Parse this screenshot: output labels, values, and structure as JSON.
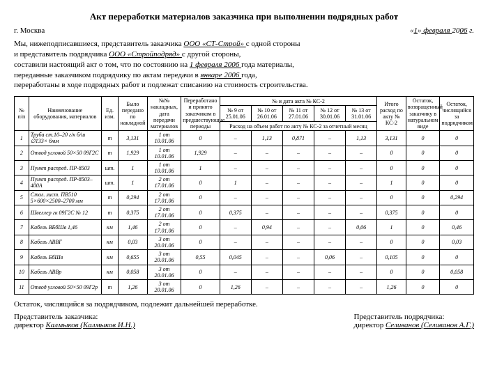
{
  "title": "Акт переработки материалов заказчика при выполнении подрядных работ",
  "city": "г. Москва",
  "date_quote_open": "«",
  "date_day": "1",
  "date_quote_close": "»",
  "date_month": " февраля ",
  "date_year_prefix": "20",
  "date_year_last": "06",
  "date_suffix": " г.",
  "preamble": {
    "l1a": "Мы, нижеподписавшиеся, представитель заказчика ",
    "customer": " ООО «СТ-Строй» ",
    "l1b": " с одной стороны",
    "l2a": "и представитель подрядчика ",
    "contractor": " ООО «Стройподряд» ",
    "l2b": " с другой стороны,",
    "l3a": "составили настоящий акт о том, что по состоянию на ",
    "asof": " 1 февраля 2006 ",
    "l3b": " года материалы,",
    "l4a": "переданные заказчиком подрядчику по актам передачи в ",
    "period": " январе 2006 ",
    "l4b": " года,",
    "l5": "переработаны в ходе подрядных работ и подлежат списанию на стоимость строительства."
  },
  "head": {
    "c0": "№ п/п",
    "c1": "Наименование оборудования, материалов",
    "c2": "Ед. изм.",
    "c3": "Было передано по накладной",
    "c4": "№№ накладных, дата передачи материалов",
    "c5": "Переработано и принято заказчиком в предшествующие периоды",
    "c6": "№ и дата акта № КС-2",
    "c11": "Итого расход по акту № КС-2",
    "c12": "Остаток, возвращенный заказчику в натуральном виде",
    "c13": "Остаток, числящийся за подрядчиком",
    "a": [
      "№ 9 от 25.01.06",
      "№ 10 от 26.01.06",
      "№ 11 от 27.01.06",
      "№ 12 от 30.01.06",
      "№ 13 от 31.01.06"
    ],
    "sub": "Расход на объем работ по акту № КС-2 за отчетный месяц"
  },
  "rows": [
    {
      "n": "1",
      "name": "Труба ст.10–20 г/к б/ш ∅133× 6мм",
      "u": "т",
      "was": "3,131",
      "inv": "1 от 10.01.06",
      "prev": "0",
      "a": [
        "–",
        "1,13",
        "0,871",
        "–",
        "1,13"
      ],
      "tot": "3,131",
      "ret": "0",
      "rem": "0"
    },
    {
      "n": "2",
      "name": "Отвод угловой 50×50 09Г2С",
      "u": "т",
      "was": "1,929",
      "inv": "1 от 10.01.06",
      "prev": "1,929",
      "a": [
        "–",
        "–",
        "–",
        "–",
        "–"
      ],
      "tot": "0",
      "ret": "0",
      "rem": "0"
    },
    {
      "n": "3",
      "name": "Пункт распред. ПР-8503",
      "u": "шт.",
      "was": "1",
      "inv": "1 от 10.01.06",
      "prev": "1",
      "a": [
        "–",
        "–",
        "–",
        "–",
        "–"
      ],
      "tot": "0",
      "ret": "0",
      "rem": "0"
    },
    {
      "n": "4",
      "name": "Пункт распред. ПР-8503–400А",
      "u": "шт.",
      "was": "1",
      "inv": "2 от 17.01.06",
      "prev": "0",
      "a": [
        "1",
        "–",
        "–",
        "–",
        "–"
      ],
      "tot": "1",
      "ret": "0",
      "rem": "0"
    },
    {
      "n": "5",
      "name": "Стол. лист. ПВ510 5×600×2500–2700 мм",
      "u": "т",
      "was": "0,294",
      "inv": "2 от 17.01.06",
      "prev": "0",
      "a": [
        "–",
        "–",
        "–",
        "–",
        "–"
      ],
      "tot": "0",
      "ret": "0",
      "rem": "0,294"
    },
    {
      "n": "6",
      "name": "Швеллер гк 09Г2С № 12",
      "u": "т",
      "was": "0,375",
      "inv": "2 от 17.01.06",
      "prev": "0",
      "a": [
        "0,375",
        "–",
        "–",
        "–",
        "–"
      ],
      "tot": "0,375",
      "ret": "0",
      "rem": "0"
    },
    {
      "n": "7",
      "name": "Кабель ВБбШв 1,46",
      "u": "км",
      "was": "1,46",
      "inv": "2 от 17.01.06",
      "prev": "0",
      "a": [
        "–",
        "0,94",
        "–",
        "–",
        "0,06"
      ],
      "tot": "1",
      "ret": "0",
      "rem": "0,46"
    },
    {
      "n": "8",
      "name": "Кабель АВВГ",
      "u": "км",
      "was": "0,03",
      "inv": "3 от 20.01.06",
      "prev": "0",
      "a": [
        "–",
        "–",
        "–",
        "–",
        "–"
      ],
      "tot": "0",
      "ret": "0",
      "rem": "0,03"
    },
    {
      "n": "9",
      "name": "Кабель БбШв",
      "u": "км",
      "was": "0,655",
      "inv": "3 от 20.01.06",
      "prev": "0,55",
      "a": [
        "0,045",
        "–",
        "–",
        "0,06",
        "–"
      ],
      "tot": "0,105",
      "ret": "0",
      "rem": "0"
    },
    {
      "n": "10",
      "name": "Кабель АВВр",
      "u": "км",
      "was": "0,058",
      "inv": "3 от 20.01.06",
      "prev": "0",
      "a": [
        "–",
        "–",
        "–",
        "–",
        "–"
      ],
      "tot": "0",
      "ret": "0",
      "rem": "0,058"
    },
    {
      "n": "11",
      "name": "Отвод угловой 50×50 09Г2р",
      "u": "т",
      "was": "1,26",
      "inv": "3 от 20.01.06",
      "prev": "0",
      "a": [
        "1,26",
        "–",
        "–",
        "–",
        "–"
      ],
      "tot": "1,26",
      "ret": "0",
      "rem": "0"
    }
  ],
  "footer": "Остаток, числящийся за подрядчиком, подлежит дальнейшей переработке.",
  "sig": {
    "cust_title": "Представитель заказчика:",
    "cust_role": "директор ",
    "cust_name": " Калмыков (Калмыков И.Н.) ",
    "contr_title": "Представитель подрядчика:",
    "contr_role": "директор ",
    "contr_name": " Селиванов (Селиванов А.Г.) "
  }
}
